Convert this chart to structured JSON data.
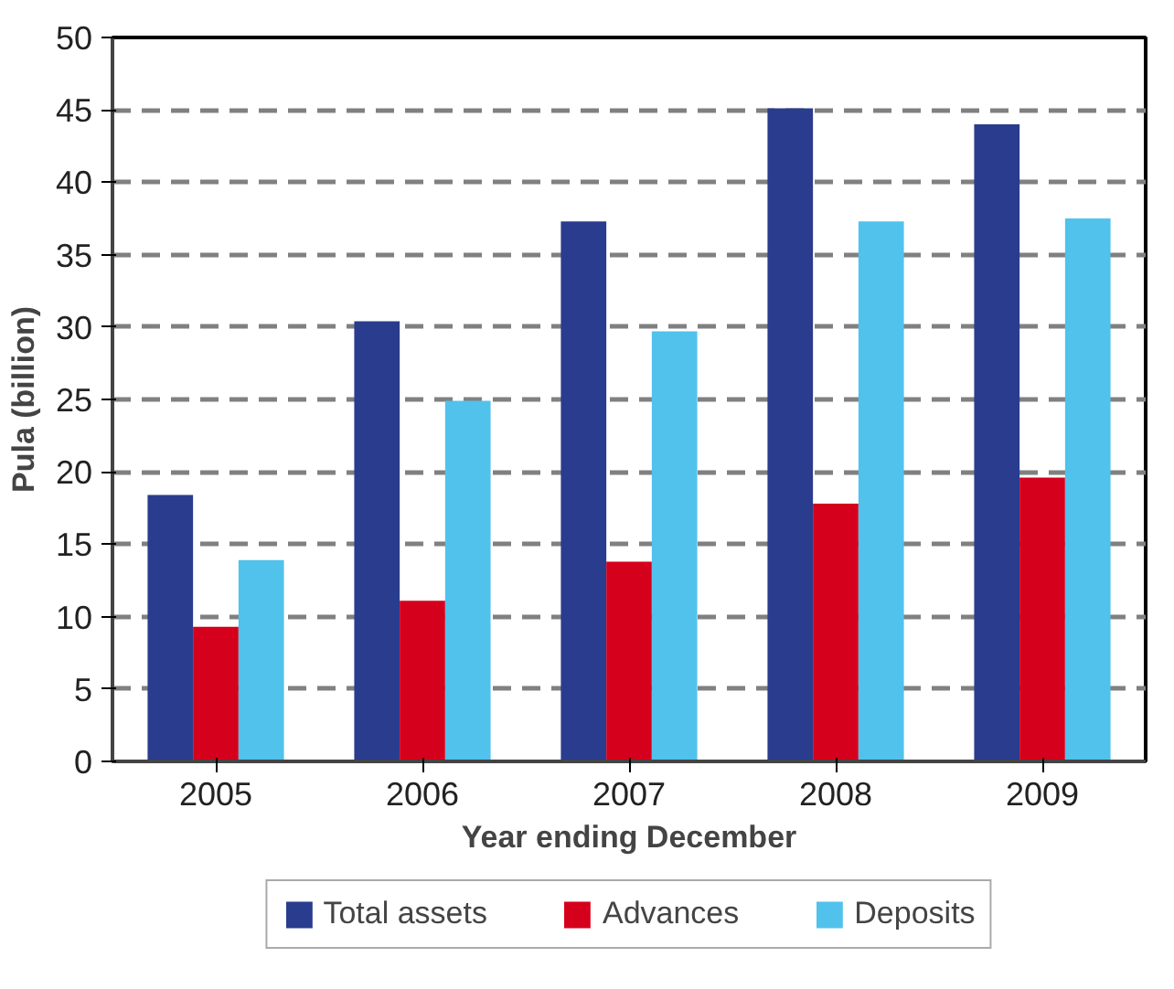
{
  "chart_data": {
    "type": "bar",
    "xlabel": "Year ending December",
    "ylabel": "Pula (billion)",
    "categories": [
      "2005",
      "2006",
      "2007",
      "2008",
      "2009"
    ],
    "series": [
      {
        "name": "Total assets",
        "color": "#293c8e",
        "values": [
          18.4,
          30.4,
          37.3,
          45.1,
          44.0
        ]
      },
      {
        "name": "Advances",
        "color": "#d5001c",
        "values": [
          9.3,
          11.1,
          13.8,
          17.8,
          19.6
        ]
      },
      {
        "name": "Deposits",
        "color": "#50c2ec",
        "values": [
          13.9,
          24.9,
          29.7,
          37.3,
          37.5
        ]
      }
    ],
    "ylim": [
      0,
      50
    ],
    "yticks": [
      0,
      5,
      10,
      15,
      20,
      25,
      30,
      35,
      40,
      45,
      50
    ],
    "grid": "y",
    "legend": "bottom"
  }
}
